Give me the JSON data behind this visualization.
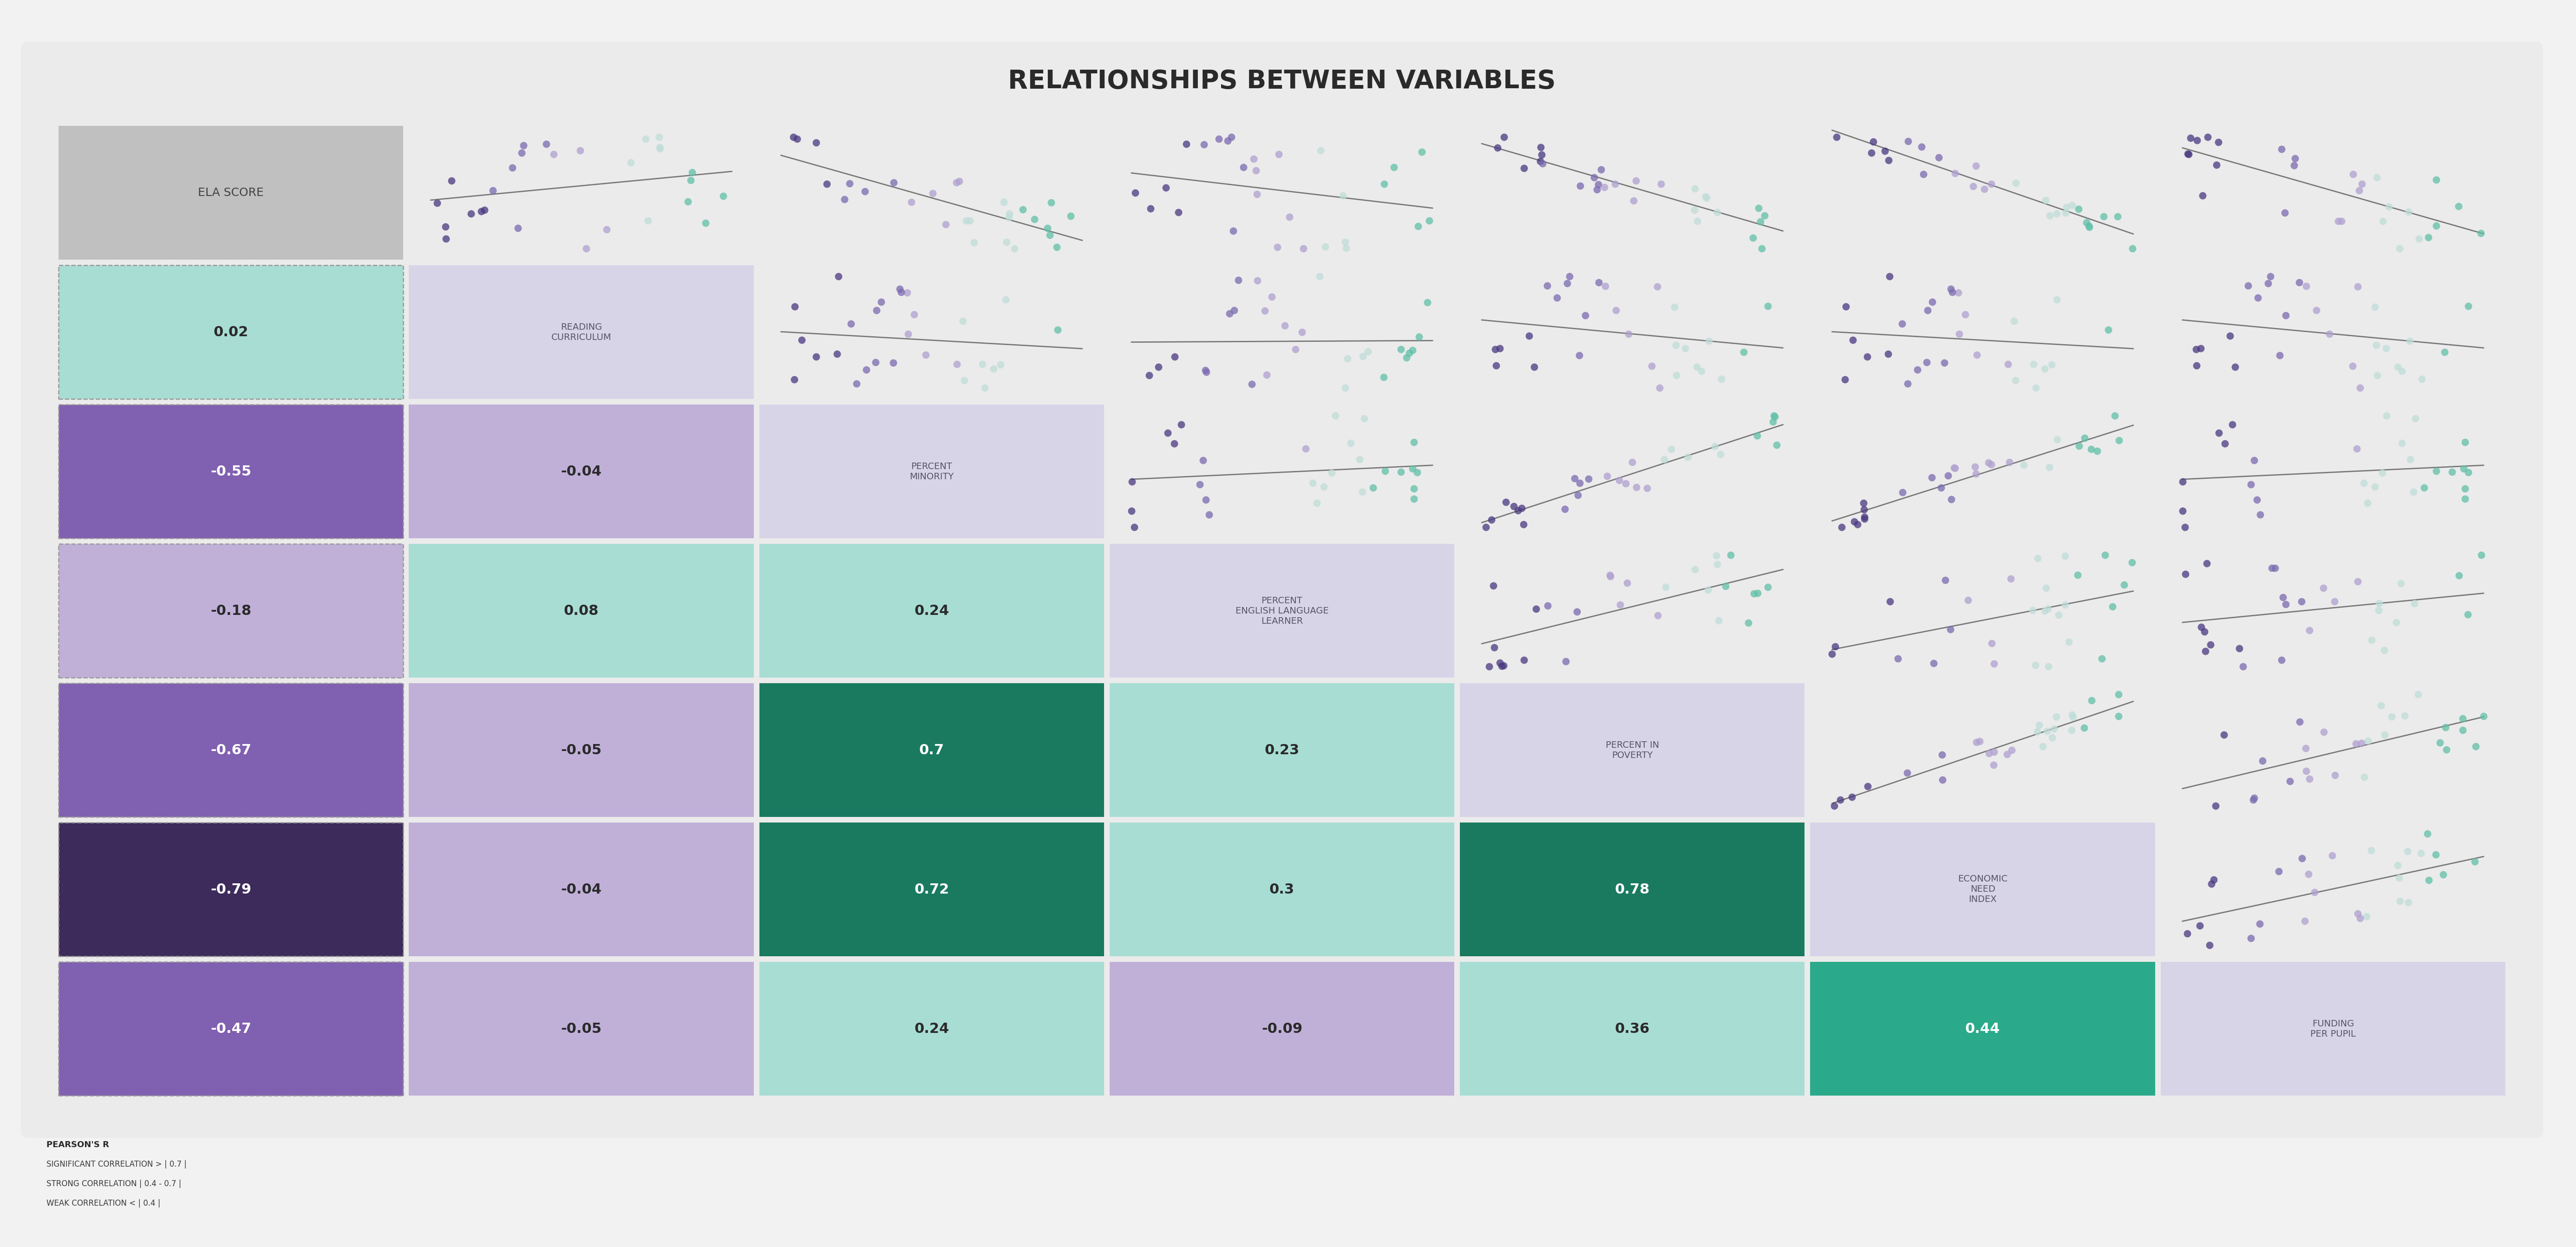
{
  "title": "RELATIONSHIPS BETWEEN VARIABLES",
  "fig_bg": "#f2f2f2",
  "panel_bg": "#ebebeb",
  "variables": [
    "ELA SCORE",
    "READING\nCURRICULUM",
    "PERCENT\nMINORITY",
    "PERCENT\nENGLISH LANGUAGE\nLEARNER",
    "PERCENT IN\nPOVERTY",
    "ECONOMIC\nNEED\nINDEX",
    "FUNDING\nPER PUPIL"
  ],
  "n_vars": 7,
  "correlations": [
    [
      null,
      0.02,
      -0.55,
      -0.18,
      -0.67,
      -0.79,
      -0.47
    ],
    [
      0.02,
      null,
      -0.04,
      0.08,
      -0.05,
      -0.04,
      -0.05
    ],
    [
      -0.55,
      -0.04,
      null,
      0.24,
      0.7,
      0.72,
      0.24
    ],
    [
      -0.18,
      0.08,
      0.24,
      null,
      0.23,
      0.3,
      -0.09
    ],
    [
      -0.67,
      -0.05,
      0.7,
      0.23,
      null,
      0.78,
      0.36
    ],
    [
      -0.79,
      -0.04,
      0.72,
      0.3,
      0.78,
      null,
      0.44
    ],
    [
      -0.47,
      -0.05,
      0.24,
      -0.09,
      0.36,
      0.44,
      null
    ]
  ],
  "color_sig_pos": "#1a7a60",
  "color_strong_pos": "#2aaa8a",
  "color_weak_pos": "#a8ddd4",
  "color_weak_neg": "#c0b0d8",
  "color_strong_neg": "#8060b0",
  "color_sig_neg": "#3d2b5c",
  "color_diag_ela": "#c0c0c0",
  "color_diag_other": "#d8d4e8",
  "color_scatter_bg": "#ebebeb",
  "dot_palette": [
    "#4a3880",
    "#7a6ab0",
    "#b0a0d0",
    "#c0ddd8",
    "#60c0a8",
    "#2aaa8a"
  ],
  "line_color": "#787878",
  "legend_items": [
    "PEARSON'S R",
    "SIGNIFICANT CORRELATION > | 0.7 |",
    "STRONG CORRELATION | 0.4 - 0.7 |",
    "WEAK CORRELATION < | 0.4 |"
  ]
}
